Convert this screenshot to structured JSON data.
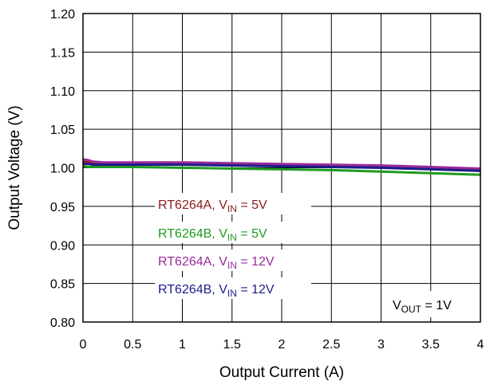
{
  "chart_data": {
    "type": "line",
    "title": "",
    "xlabel": "Output Current (A)",
    "ylabel": "Output Voltage (V)",
    "xlim": [
      0,
      4
    ],
    "ylim": [
      0.8,
      1.2
    ],
    "x_ticks": [
      "0",
      "0.5",
      "1",
      "1.5",
      "2",
      "2.5",
      "3",
      "3.5",
      "4"
    ],
    "y_ticks": [
      "0.80",
      "0.85",
      "0.90",
      "0.95",
      "1.00",
      "1.05",
      "1.10",
      "1.15",
      "1.20"
    ],
    "grid": true,
    "legend_position": "center-left",
    "annotation": {
      "main": "V",
      "sub": "OUT",
      "rest": " = 1V"
    },
    "series": [
      {
        "name": "RT6264A, VIN = 5V",
        "label_main": "RT6264A, V",
        "label_sub": "IN",
        "label_rest": " = 5V",
        "color": "#8b1a1a",
        "x": [
          0,
          0.05,
          0.1,
          0.2,
          0.5,
          1.0,
          1.5,
          2.0,
          2.5,
          3.0,
          3.5,
          4.0
        ],
        "y": [
          1.008,
          1.007,
          1.006,
          1.006,
          1.006,
          1.006,
          1.005,
          1.004,
          1.003,
          1.002,
          1.0,
          0.998
        ]
      },
      {
        "name": "RT6264B, VIN = 5V",
        "label_main": "RT6264B, V",
        "label_sub": "IN",
        "label_rest": " = 5V",
        "color": "#1f9a1f",
        "x": [
          0,
          0.05,
          0.1,
          0.2,
          0.5,
          1.0,
          1.5,
          2.0,
          2.5,
          3.0,
          3.5,
          4.0
        ],
        "y": [
          1.002,
          1.001,
          1.001,
          1.001,
          1.001,
          1.0,
          0.999,
          0.998,
          0.997,
          0.995,
          0.993,
          0.991
        ]
      },
      {
        "name": "RT6264A, VIN = 12V",
        "label_main": "RT6264A, V",
        "label_sub": "IN",
        "label_rest": " = 12V",
        "color": "#9a2a9a",
        "x": [
          0,
          0.05,
          0.1,
          0.2,
          0.5,
          1.0,
          1.5,
          2.0,
          2.5,
          3.0,
          3.5,
          4.0
        ],
        "y": [
          1.011,
          1.01,
          1.008,
          1.007,
          1.007,
          1.007,
          1.006,
          1.005,
          1.004,
          1.003,
          1.001,
          0.999
        ]
      },
      {
        "name": "RT6264B, VIN = 12V",
        "label_main": "RT6264B, V",
        "label_sub": "IN",
        "label_rest": " = 12V",
        "color": "#1c1c8a",
        "x": [
          0,
          0.05,
          0.1,
          0.2,
          0.5,
          1.0,
          1.5,
          2.0,
          2.5,
          3.0,
          3.5,
          4.0
        ],
        "y": [
          1.005,
          1.005,
          1.004,
          1.004,
          1.004,
          1.004,
          1.003,
          1.002,
          1.001,
          1.0,
          0.998,
          0.996
        ]
      }
    ]
  }
}
